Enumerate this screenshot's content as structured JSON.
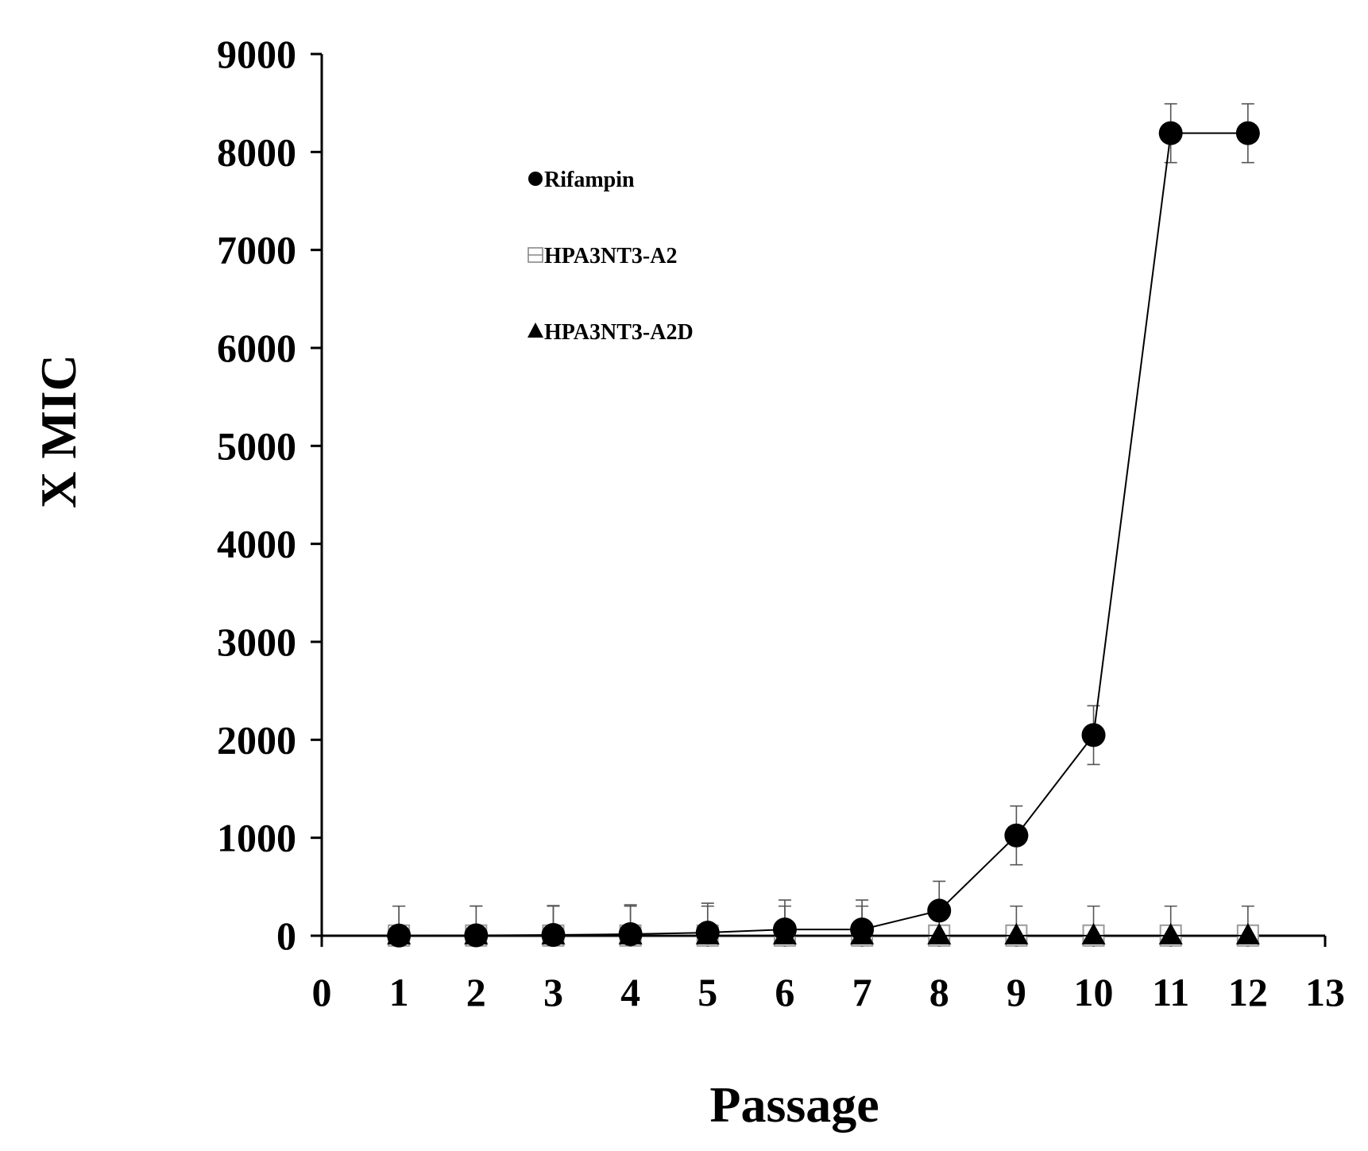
{
  "chart_data": {
    "type": "line",
    "title": "",
    "xlabel": "Passage",
    "ylabel": "X MIC",
    "xlim": [
      0,
      13
    ],
    "ylim": [
      0,
      9000
    ],
    "x_ticks": [
      "0",
      "1",
      "2",
      "3",
      "4",
      "5",
      "6",
      "7",
      "8",
      "9",
      "10",
      "11",
      "12",
      "13"
    ],
    "y_ticks": [
      "0",
      "1000",
      "2000",
      "3000",
      "4000",
      "5000",
      "6000",
      "7000",
      "8000",
      "9000"
    ],
    "grid": false,
    "legend_position": "top-left",
    "x": [
      1,
      2,
      3,
      4,
      5,
      6,
      7,
      8,
      9,
      10,
      11,
      12
    ],
    "series": [
      {
        "name": "Rifampin",
        "marker": "circle",
        "values": [
          2,
          4,
          8,
          16,
          32,
          64,
          64,
          256,
          1024,
          2048,
          8192,
          8192
        ],
        "error": [
          300,
          300,
          300,
          300,
          300,
          300,
          300,
          300,
          300,
          300,
          300,
          300
        ]
      },
      {
        "name": "HPA3NT3-A2",
        "marker": "open-square",
        "values": [
          2,
          2,
          2,
          2,
          2,
          2,
          2,
          2,
          2,
          2,
          2,
          2
        ],
        "error": [
          300,
          300,
          300,
          300,
          300,
          300,
          300,
          300,
          300,
          300,
          300,
          300
        ]
      },
      {
        "name": "HPA3NT3-A2D",
        "marker": "triangle",
        "values": [
          1,
          1,
          1,
          1,
          1,
          1,
          1,
          1,
          1,
          1,
          1,
          1
        ],
        "error": [
          0,
          0,
          0,
          0,
          0,
          0,
          0,
          0,
          0,
          0,
          0,
          0
        ]
      }
    ]
  }
}
